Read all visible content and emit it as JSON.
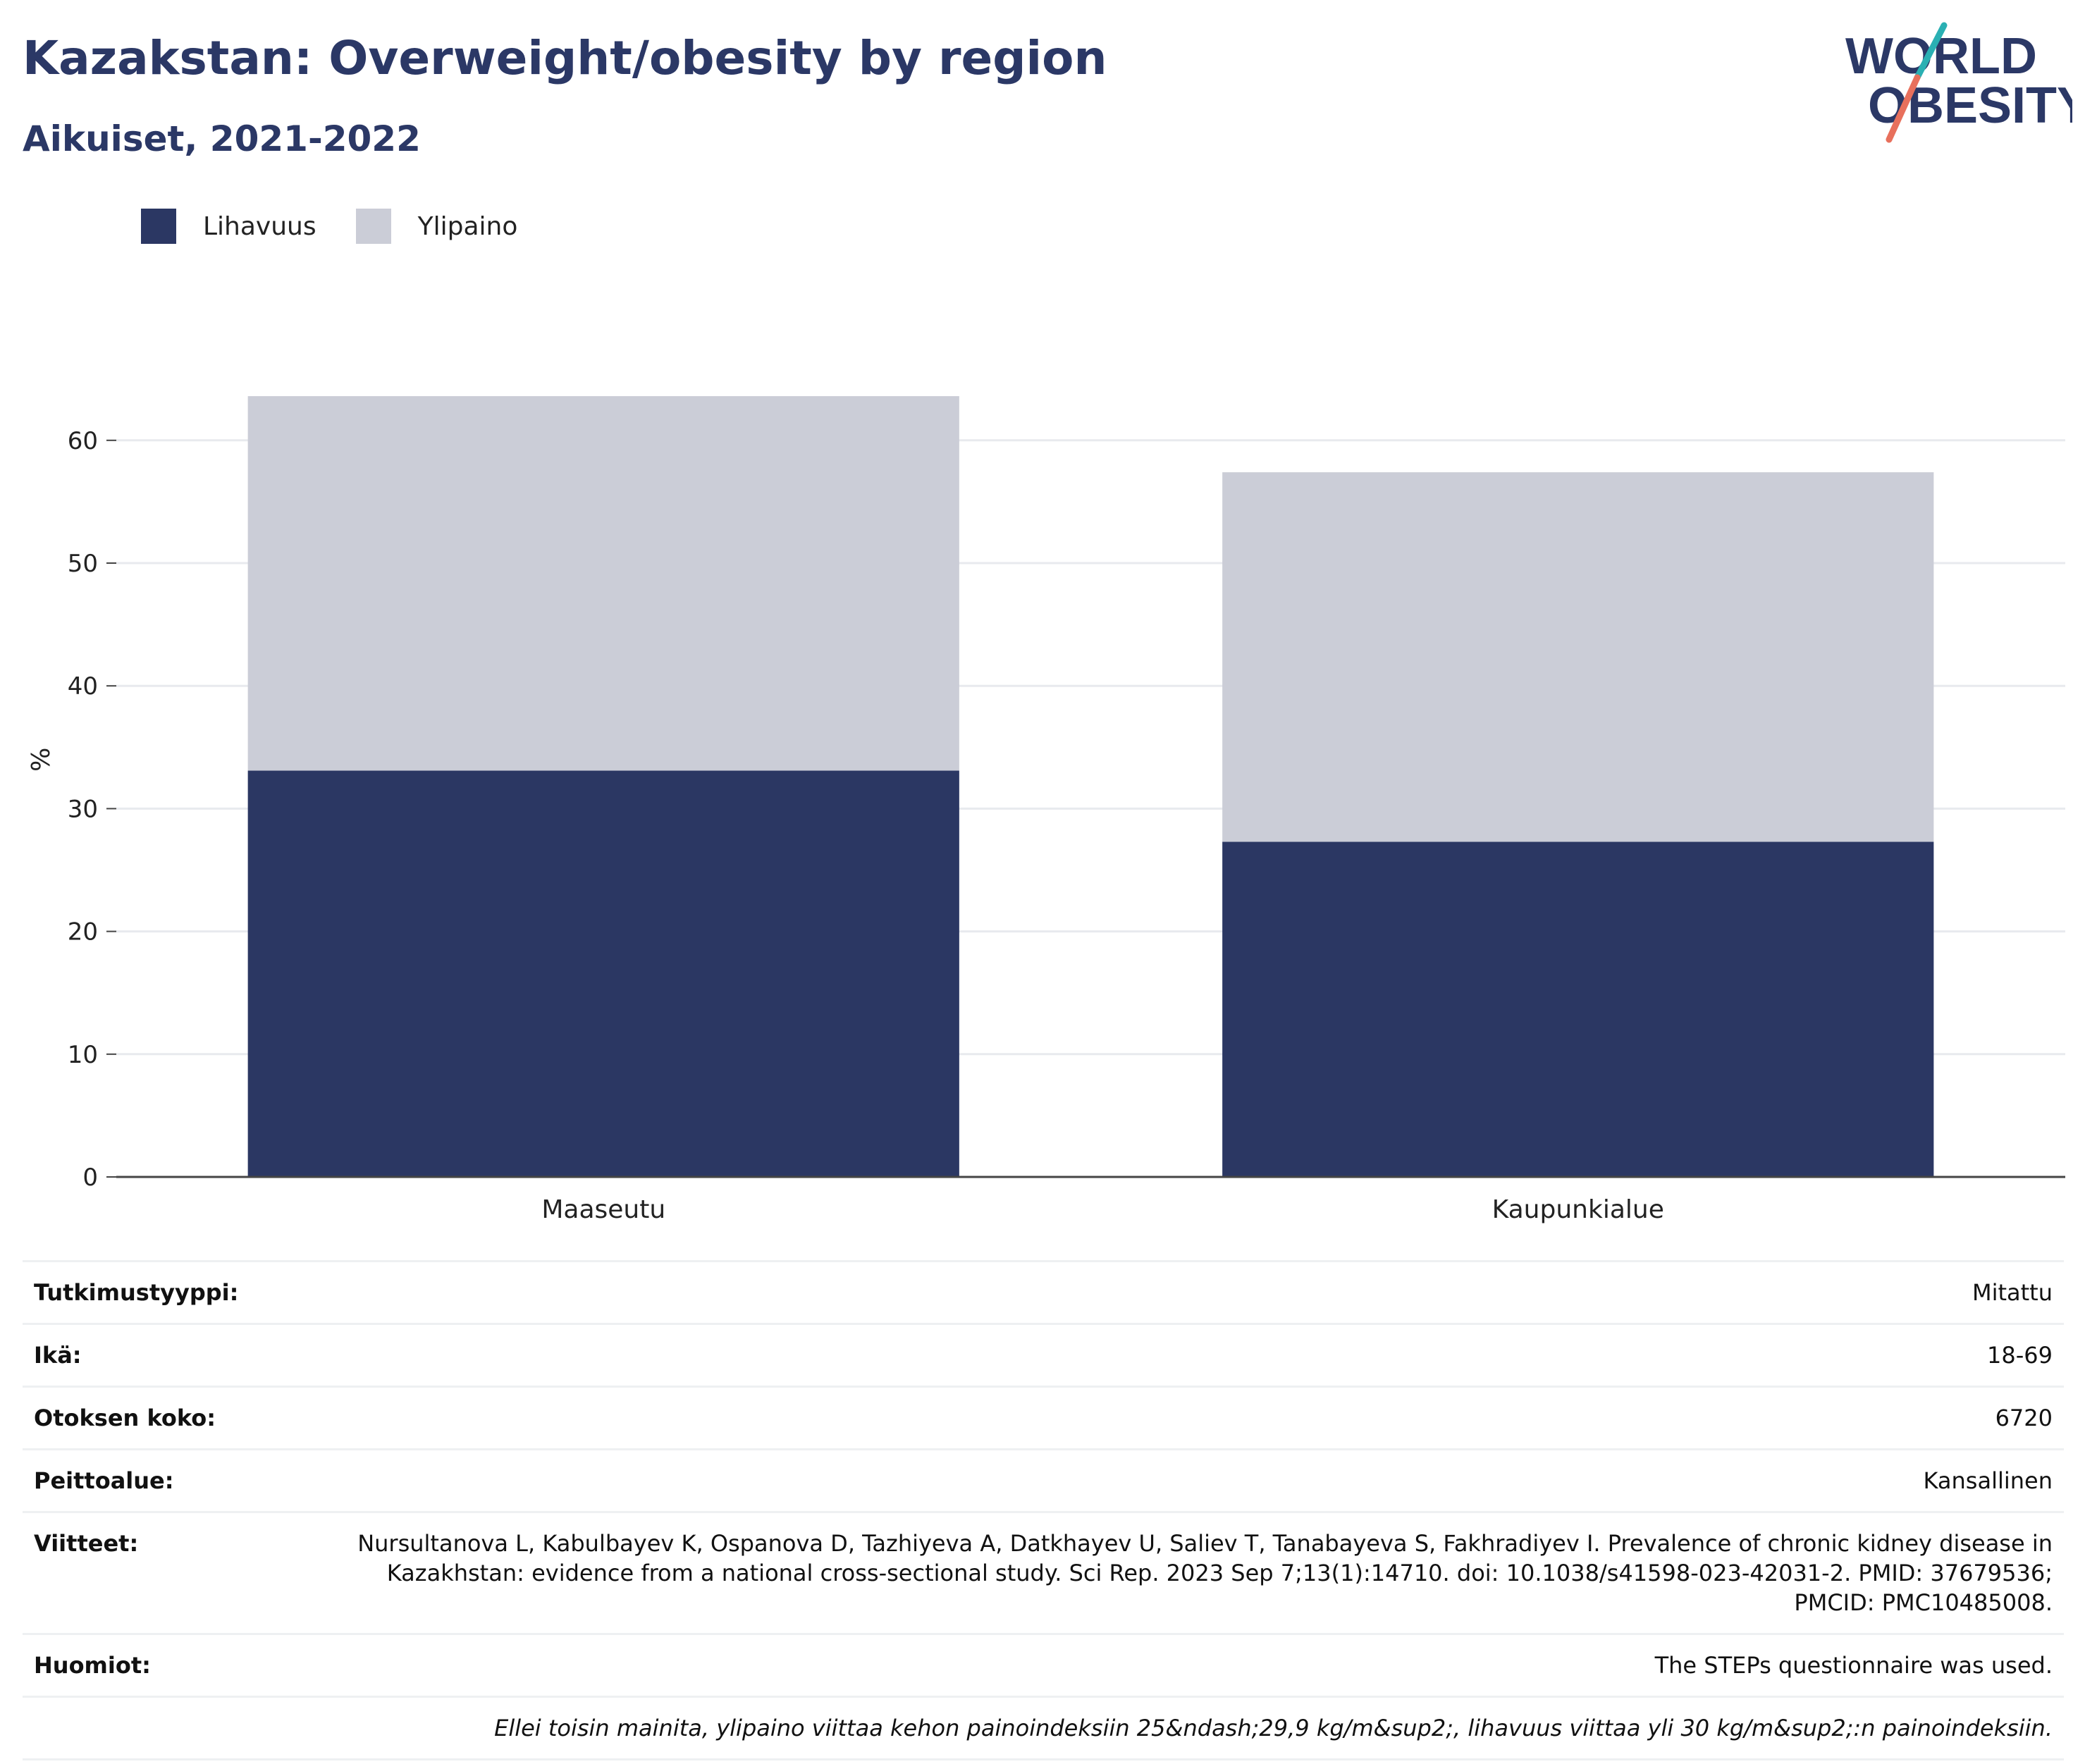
{
  "header": {
    "title": "Kazakstan: Overweight/obesity by region",
    "subtitle": "Aikuiset, 2021-2022"
  },
  "logo": {
    "line1": "WORLD",
    "line2": "OBESITY",
    "colors": {
      "text": "#2b3866",
      "slash_top": "#2ab0b3",
      "slash_bottom": "#e8705c"
    }
  },
  "legend": [
    {
      "label": "Lihavuus",
      "color": "#2b3763"
    },
    {
      "label": "Ylipaino",
      "color": "#cbcdd7"
    }
  ],
  "chart_data": {
    "type": "bar",
    "stacked": true,
    "categories": [
      "Maaseutu",
      "Kaupunkialue"
    ],
    "series": [
      {
        "name": "Lihavuus",
        "values": [
          33.1,
          27.3
        ],
        "color": "#2b3763"
      },
      {
        "name": "Ylipaino",
        "values": [
          30.5,
          30.1
        ],
        "color": "#cbcdd7"
      }
    ],
    "ylabel": "%",
    "xlabel": "",
    "ylim": [
      0,
      70
    ],
    "yticks": [
      0,
      10,
      20,
      30,
      40,
      50,
      60
    ],
    "grid": true,
    "legend_position": "top-left"
  },
  "info": [
    {
      "key": "Tutkimustyyppi:",
      "value": "Mitattu"
    },
    {
      "key": "Ikä:",
      "value": "18-69"
    },
    {
      "key": "Otoksen koko:",
      "value": "6720"
    },
    {
      "key": "Peittoalue:",
      "value": "Kansallinen"
    },
    {
      "key": "Viitteet:",
      "value": "Nursultanova L, Kabulbayev K, Ospanova D, Tazhiyeva A, Datkhayev U, Saliev T, Tanabayeva S, Fakhradiyev I. Prevalence of chronic kidney disease in Kazakhstan: evidence from a national cross-sectional study. Sci Rep. 2023 Sep 7;13(1):14710. doi: 10.1038/s41598-023-42031-2. PMID: 37679536; PMCID: PMC10485008."
    },
    {
      "key": "Huomiot:",
      "value": "The STEPs questionnaire was used."
    }
  ],
  "footnote": "Ellei toisin mainita, ylipaino viittaa kehon painoindeksiin 25&ndash;29,9 kg/m&sup2;, lihavuus viittaa yli 30 kg/m&sup2;:n painoindeksiin."
}
